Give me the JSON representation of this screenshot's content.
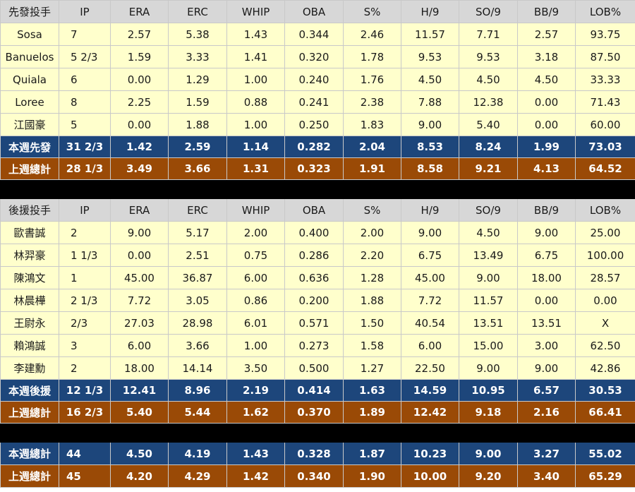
{
  "columns": [
    "IP",
    "ERA",
    "ERC",
    "WHIP",
    "OBA",
    "S%",
    "H/9",
    "SO/9",
    "BB/9",
    "LOB%"
  ],
  "starters": {
    "header": "先發投手",
    "rows": [
      {
        "name": "Sosa",
        "vals": [
          "7",
          "2.57",
          "5.38",
          "1.43",
          "0.344",
          "2.46",
          "11.57",
          "7.71",
          "2.57",
          "93.75"
        ]
      },
      {
        "name": "Banuelos",
        "vals": [
          "5 2/3",
          "1.59",
          "3.33",
          "1.41",
          "0.320",
          "1.78",
          "9.53",
          "9.53",
          "3.18",
          "87.50"
        ]
      },
      {
        "name": "Quiala",
        "vals": [
          "6",
          "0.00",
          "1.29",
          "1.00",
          "0.240",
          "1.76",
          "4.50",
          "4.50",
          "4.50",
          "33.33"
        ]
      },
      {
        "name": "Loree",
        "vals": [
          "8",
          "2.25",
          "1.59",
          "0.88",
          "0.241",
          "2.38",
          "7.88",
          "12.38",
          "0.00",
          "71.43"
        ]
      },
      {
        "name": "江國豪",
        "vals": [
          "5",
          "0.00",
          "1.88",
          "1.00",
          "0.250",
          "1.83",
          "9.00",
          "5.40",
          "0.00",
          "60.00"
        ]
      }
    ],
    "this_week": {
      "name": "本週先發",
      "vals": [
        "31 2/3",
        "1.42",
        "2.59",
        "1.14",
        "0.282",
        "2.04",
        "8.53",
        "8.24",
        "1.99",
        "73.03"
      ]
    },
    "last_week": {
      "name": "上週總計",
      "vals": [
        "28 1/3",
        "3.49",
        "3.66",
        "1.31",
        "0.323",
        "1.91",
        "8.58",
        "9.21",
        "4.13",
        "64.52"
      ]
    }
  },
  "relievers": {
    "header": "後援投手",
    "rows": [
      {
        "name": "歐書誠",
        "vals": [
          "2",
          "9.00",
          "5.17",
          "2.00",
          "0.400",
          "2.00",
          "9.00",
          "4.50",
          "9.00",
          "25.00"
        ]
      },
      {
        "name": "林羿豪",
        "vals": [
          "1 1/3",
          "0.00",
          "2.51",
          "0.75",
          "0.286",
          "2.20",
          "6.75",
          "13.49",
          "6.75",
          "100.00"
        ]
      },
      {
        "name": "陳鴻文",
        "vals": [
          "1",
          "45.00",
          "36.87",
          "6.00",
          "0.636",
          "1.28",
          "45.00",
          "9.00",
          "18.00",
          "28.57"
        ]
      },
      {
        "name": "林晨樺",
        "vals": [
          "2 1/3",
          "7.72",
          "3.05",
          "0.86",
          "0.200",
          "1.88",
          "7.72",
          "11.57",
          "0.00",
          "0.00"
        ]
      },
      {
        "name": "王尉永",
        "vals": [
          "2/3",
          "27.03",
          "28.98",
          "6.01",
          "0.571",
          "1.50",
          "40.54",
          "13.51",
          "13.51",
          "X"
        ]
      },
      {
        "name": "賴鴻誠",
        "vals": [
          "3",
          "6.00",
          "3.66",
          "1.00",
          "0.273",
          "1.58",
          "6.00",
          "15.00",
          "3.00",
          "62.50"
        ]
      },
      {
        "name": "李建勳",
        "vals": [
          "2",
          "18.00",
          "14.14",
          "3.50",
          "0.500",
          "1.27",
          "22.50",
          "9.00",
          "9.00",
          "42.86"
        ]
      }
    ],
    "this_week": {
      "name": "本週後援",
      "vals": [
        "12 1/3",
        "12.41",
        "8.96",
        "2.19",
        "0.414",
        "1.63",
        "14.59",
        "10.95",
        "6.57",
        "30.53"
      ]
    },
    "last_week": {
      "name": "上週總計",
      "vals": [
        "16 2/3",
        "5.40",
        "5.44",
        "1.62",
        "0.370",
        "1.89",
        "12.42",
        "9.18",
        "2.16",
        "66.41"
      ]
    }
  },
  "totals": {
    "this_week": {
      "name": "本週總計",
      "vals": [
        "44",
        "4.50",
        "4.19",
        "1.43",
        "0.328",
        "1.87",
        "10.23",
        "9.00",
        "3.27",
        "55.02"
      ]
    },
    "last_week": {
      "name": "上週總計",
      "vals": [
        "45",
        "4.20",
        "4.29",
        "1.42",
        "0.340",
        "1.90",
        "10.00",
        "9.20",
        "3.40",
        "65.29"
      ]
    }
  },
  "colors": {
    "header_bg": "#d7d7d7",
    "row_bg": "#ffffcc",
    "this_week_bg": "#1d467b",
    "last_week_bg": "#9a4a06",
    "separator_bg": "#000000"
  }
}
